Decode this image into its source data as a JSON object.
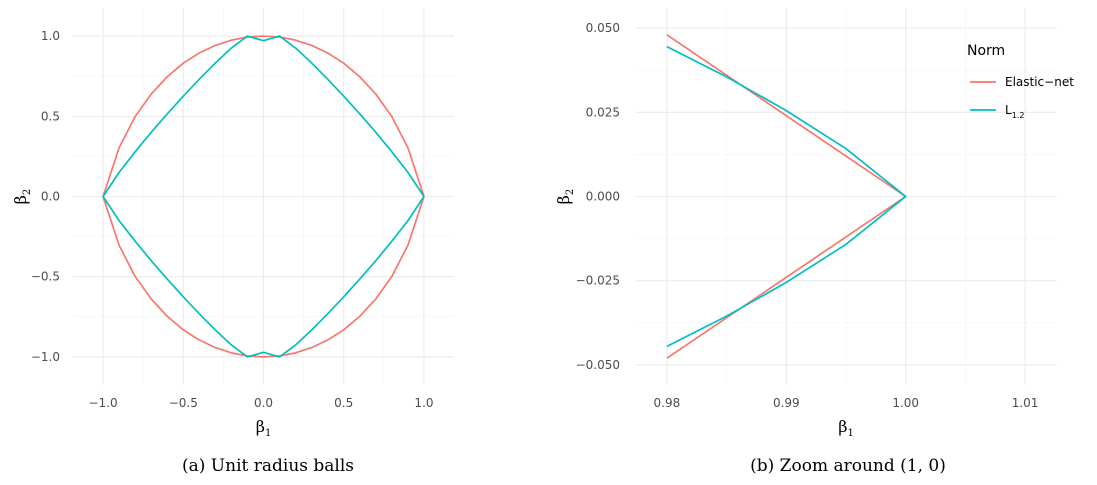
{
  "colors": {
    "elastic_net": "#F8766D",
    "l12": "#00BFC4"
  },
  "legend": {
    "title": "Norm",
    "items": [
      {
        "main": "Elastic−net",
        "sub": "",
        "color": "#F8766D"
      },
      {
        "main": "L",
        "sub": "1.2",
        "color": "#00BFC4"
      }
    ]
  },
  "chart_data": [
    {
      "type": "line",
      "caption": "(a) Unit radius balls",
      "xlabel": {
        "main": "β",
        "sub": "1"
      },
      "ylabel": {
        "main": "β",
        "sub": "2"
      },
      "xlim": [
        -1.0,
        1.0
      ],
      "ylim": [
        -1.0,
        1.0
      ],
      "xticks": [
        -1.0,
        -0.5,
        0.0,
        0.5,
        1.0
      ],
      "xtick_labels": [
        "−1.0",
        "−0.5",
        "0.0",
        "0.5",
        "1.0"
      ],
      "yticks": [
        -1.0,
        -0.5,
        0.0,
        0.5,
        1.0
      ],
      "ytick_labels": [
        "−1.0",
        "−0.5",
        "0.0",
        "0.5",
        "1.0"
      ],
      "grid": true,
      "series": [
        {
          "name": "Elastic−net",
          "color": "#F8766D",
          "x": [
            1.0,
            0.9,
            0.8,
            0.7,
            0.6,
            0.5,
            0.4,
            0.3,
            0.2,
            0.1,
            0.0,
            -0.1,
            -0.2,
            -0.3,
            -0.4,
            -0.5,
            -0.6,
            -0.7,
            -0.8,
            -0.9,
            -1.0,
            -0.9,
            -0.8,
            -0.7,
            -0.6,
            -0.5,
            -0.4,
            -0.3,
            -0.2,
            -0.1,
            0.0,
            0.1,
            0.2,
            0.3,
            0.4,
            0.5,
            0.6,
            0.7,
            0.8,
            0.9,
            1.0
          ],
          "y": [
            0.0,
            0.334,
            0.548,
            0.702,
            0.821,
            0.914,
            0.984,
            1.036,
            1.072,
            1.093,
            1.1,
            1.093,
            1.072,
            1.036,
            0.984,
            0.914,
            0.821,
            0.702,
            0.548,
            0.334,
            0.0,
            -0.334,
            -0.548,
            -0.702,
            -0.821,
            -0.914,
            -0.984,
            -1.036,
            -1.072,
            -1.093,
            -1.1,
            -1.093,
            -1.072,
            -1.036,
            -0.984,
            -0.914,
            -0.821,
            -0.702,
            -0.548,
            -0.334,
            0.0
          ],
          "display_scale_y": 0.9091
        },
        {
          "name": "L1.2",
          "color": "#00BFC4",
          "x": [
            1.0,
            0.9,
            0.8,
            0.7,
            0.6,
            0.5,
            0.4,
            0.3,
            0.2,
            0.1,
            0.0,
            -0.1,
            -0.2,
            -0.3,
            -0.4,
            -0.5,
            -0.6,
            -0.7,
            -0.8,
            -0.9,
            -1.0,
            -0.9,
            -0.8,
            -0.7,
            -0.6,
            -0.5,
            -0.4,
            -0.3,
            -0.2,
            -0.1,
            0.0,
            0.1,
            0.2,
            0.3,
            0.4,
            0.5,
            0.6,
            0.7,
            0.8,
            0.9,
            1.0
          ],
          "y": [
            0.0,
            0.155,
            0.287,
            0.412,
            0.53,
            0.644,
            0.753,
            0.857,
            0.953,
            1.03,
            1.0,
            1.03,
            0.953,
            0.857,
            0.753,
            0.644,
            0.53,
            0.412,
            0.287,
            0.155,
            0.0,
            -0.155,
            -0.287,
            -0.412,
            -0.53,
            -0.644,
            -0.753,
            -0.857,
            -0.953,
            -1.03,
            -1.0,
            -1.03,
            -0.953,
            -0.857,
            -0.753,
            -0.644,
            -0.53,
            -0.412,
            -0.287,
            -0.155,
            0.0
          ],
          "display_scale_y": 0.971
        }
      ]
    },
    {
      "type": "line",
      "caption": "(b) Zoom around (1, 0)",
      "xlabel": {
        "main": "β",
        "sub": "1"
      },
      "ylabel": {
        "main": "β",
        "sub": "2"
      },
      "xlim": [
        0.98,
        1.01
      ],
      "ylim": [
        -0.05,
        0.05
      ],
      "xticks": [
        0.98,
        0.99,
        1.0,
        1.01
      ],
      "xtick_labels": [
        "0.98",
        "0.99",
        "1.00",
        "1.01"
      ],
      "yticks": [
        -0.05,
        -0.025,
        0.0,
        0.025,
        0.05
      ],
      "ytick_labels": [
        "−0.050",
        "−0.025",
        "0.000",
        "0.025",
        "0.050"
      ],
      "grid": true,
      "legend_position": "top-right",
      "series": [
        {
          "name": "Elastic−net",
          "color": "#F8766D",
          "x": [
            0.98,
            0.99,
            1.0,
            0.99,
            0.98
          ],
          "y": [
            0.048,
            0.024,
            0.0,
            -0.024,
            -0.048
          ]
        },
        {
          "name": "L1.2",
          "color": "#00BFC4",
          "x": [
            0.98,
            0.985,
            0.99,
            0.995,
            1.0,
            0.995,
            0.99,
            0.985,
            0.98
          ],
          "y": [
            0.0445,
            0.0355,
            0.0255,
            0.0142,
            0.0,
            -0.0142,
            -0.0255,
            -0.0355,
            -0.0445
          ]
        }
      ]
    }
  ]
}
